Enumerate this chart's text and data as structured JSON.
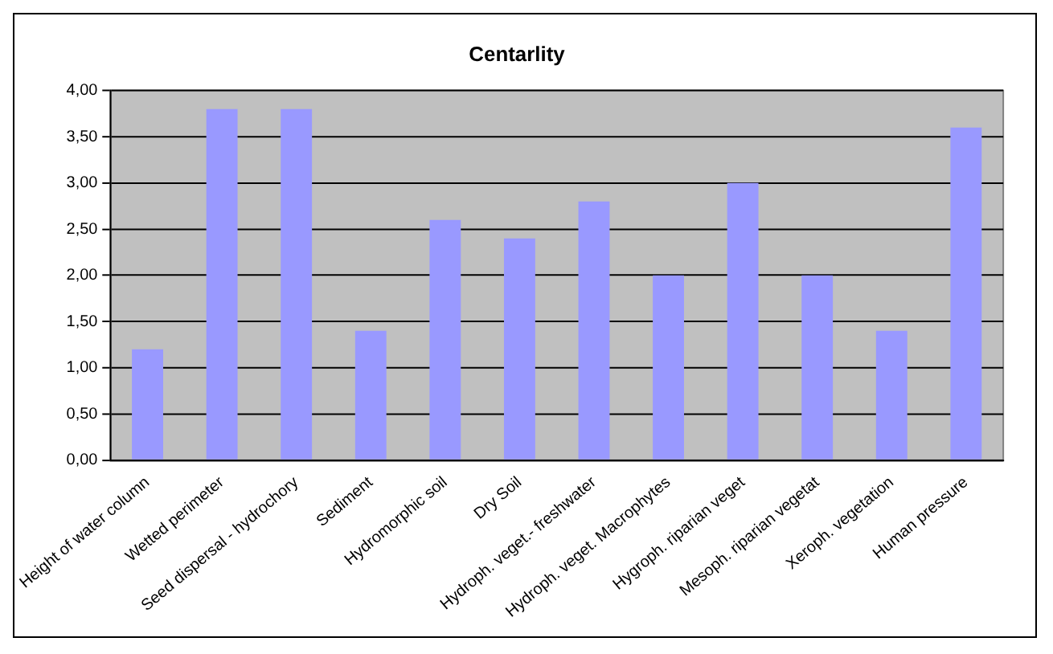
{
  "chart_data": {
    "type": "bar",
    "title": "Centarlity",
    "categories": [
      "Height of water column",
      "Wetted perimeter",
      "Seed dispersal - hydrochory",
      "Sediment",
      "Hydromorphic soil",
      "Dry Soil",
      "Hydroph. veget.- freshwater",
      "Hydroph. veget. Macrophytes",
      "Hygroph. riparian veget",
      "Mesoph. riparian vegetat",
      "Xeroph. vegetation",
      "Human pressure"
    ],
    "values": [
      1.2,
      3.8,
      3.8,
      1.4,
      2.6,
      2.4,
      2.8,
      2.0,
      3.0,
      2.0,
      1.4,
      3.6
    ],
    "color": "#9999ff",
    "ylim": [
      0,
      4
    ],
    "yticks": [
      {
        "value": 0,
        "label": "0,00"
      },
      {
        "value": 0.5,
        "label": "0,50"
      },
      {
        "value": 1,
        "label": "1,00"
      },
      {
        "value": 1.5,
        "label": "1,50"
      },
      {
        "value": 2,
        "label": "2,00"
      },
      {
        "value": 2.5,
        "label": "2,50"
      },
      {
        "value": 3,
        "label": "3,00"
      },
      {
        "value": 3.5,
        "label": "3,50"
      },
      {
        "value": 4,
        "label": "4,00"
      }
    ],
    "grid": "y",
    "legend": false
  }
}
